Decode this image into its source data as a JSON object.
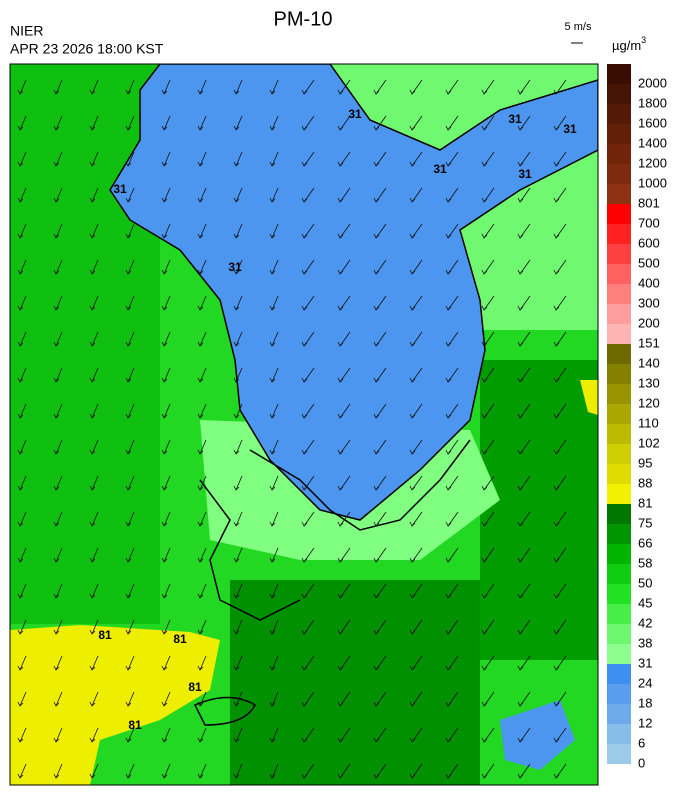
{
  "header": {
    "title": "PM-10",
    "agency": "NIER",
    "datetime": "APR 23 2026 18:00 KST",
    "wind_scale": "5 m/s",
    "unit": {
      "base": "µg/m",
      "sup": "3"
    }
  },
  "colorbar": {
    "labels": [
      0,
      6,
      12,
      18,
      24,
      31,
      38,
      42,
      45,
      50,
      58,
      66,
      75,
      81,
      88,
      95,
      102,
      110,
      120,
      130,
      140,
      151,
      200,
      300,
      400,
      500,
      600,
      700,
      801,
      1000,
      1200,
      1400,
      1600,
      1800,
      2000
    ],
    "colors": [
      "#9ccbe8",
      "#86bde9",
      "#6eaaeb",
      "#5a9cee",
      "#3f8ef2",
      "#8eff8e",
      "#6ef86e",
      "#46ee46",
      "#22e022",
      "#10cc10",
      "#00b400",
      "#009600",
      "#007800",
      "#f2f200",
      "#e0dc00",
      "#cece00",
      "#bcba00",
      "#aaa800",
      "#989400",
      "#868000",
      "#6e6a00",
      "#ffb4b4",
      "#ff9c9c",
      "#ff7e7e",
      "#ff6060",
      "#ff4040",
      "#ff2020",
      "#ff0000",
      "#8e3214",
      "#7e2a0e",
      "#70240a",
      "#622008",
      "#541a06",
      "#461404",
      "#380e02"
    ]
  },
  "contour_labels": [
    "31",
    "31",
    "31",
    "31",
    "31",
    "31",
    "31",
    "81",
    "81",
    "81",
    "81"
  ]
}
